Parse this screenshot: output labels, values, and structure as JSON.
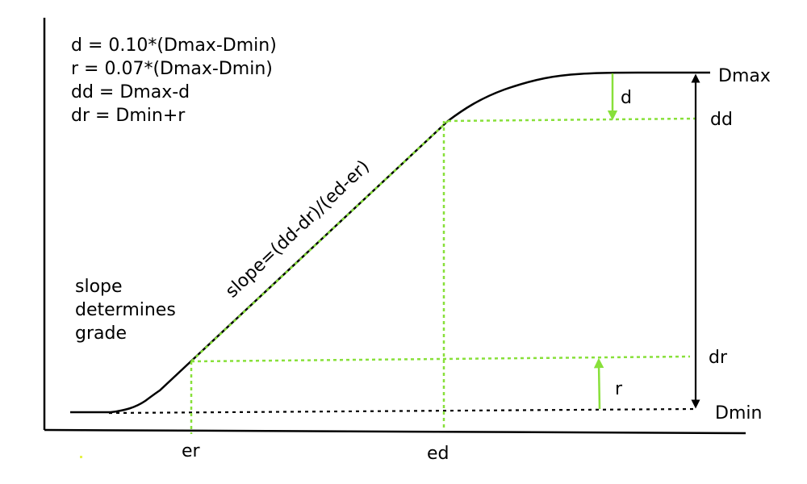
{
  "formulas": {
    "d": "d = 0.10*(Dmax-Dmin)",
    "r": "r = 0.07*(Dmax-Dmin)",
    "dd": "dd = Dmax-d",
    "dr": "dr = Dmin+r"
  },
  "note": {
    "line1": "slope",
    "line2": "determines",
    "line3": "grade"
  },
  "slope_label": "slope=(dd-dr)/(ed-er)",
  "labels": {
    "dmax": "Dmax",
    "dd": "dd",
    "dr": "dr",
    "dmin": "Dmin",
    "d": "d",
    "r": "r",
    "er": "er",
    "ed": "ed"
  },
  "colors": {
    "curve": "#000000",
    "guide": "#88e03a",
    "arrow": "#000000"
  }
}
